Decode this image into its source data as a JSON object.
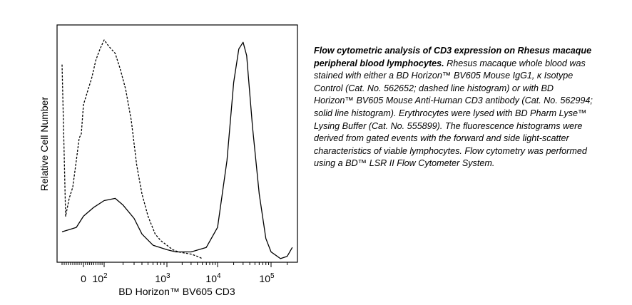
{
  "chart_data": {
    "type": "line",
    "xlabel": "BD Horizon™ BV605 CD3",
    "ylabel": "Relative Cell Number",
    "x_scale": "biexponential (log decades with linear region around 0)",
    "x_ticks": [
      {
        "value": 0,
        "label": "0"
      },
      {
        "value": 100,
        "base": "10",
        "exp": "2"
      },
      {
        "value": 1000,
        "base": "10",
        "exp": "3"
      },
      {
        "value": 10000,
        "base": "10",
        "exp": "4"
      },
      {
        "value": 100000,
        "base": "10",
        "exp": "5"
      }
    ],
    "xlim": [
      -300,
      250000
    ],
    "ylim": [
      0,
      1.0
    ],
    "grid": false,
    "legend": "none",
    "series": [
      {
        "line_style": "dashed",
        "color": "#000000",
        "x": [
          -300,
          -250,
          -200,
          -150,
          -100,
          -60,
          -30,
          0,
          20,
          40,
          60,
          80,
          100,
          120,
          150,
          180,
          220,
          270,
          330,
          400,
          500,
          650,
          800,
          1000,
          1300,
          1700,
          2200,
          3000,
          4000,
          5000
        ],
        "y": [
          0.88,
          0.2,
          0.28,
          0.33,
          0.45,
          0.55,
          0.57,
          0.7,
          0.76,
          0.82,
          0.9,
          0.95,
          0.99,
          0.96,
          0.93,
          0.86,
          0.77,
          0.63,
          0.43,
          0.3,
          0.2,
          0.12,
          0.09,
          0.07,
          0.05,
          0.04,
          0.035,
          0.03,
          0.02,
          0.01
        ]
      },
      {
        "line_style": "solid",
        "color": "#000000",
        "x": [
          -300,
          -200,
          -100,
          0,
          50,
          100,
          150,
          200,
          300,
          400,
          600,
          1000,
          1500,
          3000,
          6000,
          10000,
          15000,
          20000,
          25000,
          30000,
          35000,
          45000,
          60000,
          80000,
          100000,
          150000,
          200000,
          250000
        ],
        "y": [
          0.13,
          0.14,
          0.15,
          0.2,
          0.24,
          0.27,
          0.28,
          0.25,
          0.19,
          0.12,
          0.07,
          0.05,
          0.04,
          0.04,
          0.06,
          0.15,
          0.45,
          0.8,
          0.95,
          0.98,
          0.92,
          0.6,
          0.3,
          0.1,
          0.04,
          0.01,
          0.02,
          0.06
        ]
      }
    ]
  },
  "caption": {
    "title": "Flow cytometric analysis of CD3 expression on Rhesus macaque peripheral blood lymphocytes.",
    "body": " Rhesus macaque whole blood was stained with either a BD Horizon™ BV605  Mouse IgG1, κ Isotype Control (Cat. No. 562652; dashed line histogram) or with BD Horizon™ BV605 Mouse Anti-Human CD3 antibody (Cat. No. 562994; solid line histogram). Erythrocytes were lysed with BD Pharm Lyse™ Lysing Buffer (Cat. No. 555899). The fluorescence histograms were derived from gated events with the forward and side light-scatter characteristics of viable lymphocytes. Flow cytometry was performed using a BD™ LSR II Flow Cytometer System."
  }
}
